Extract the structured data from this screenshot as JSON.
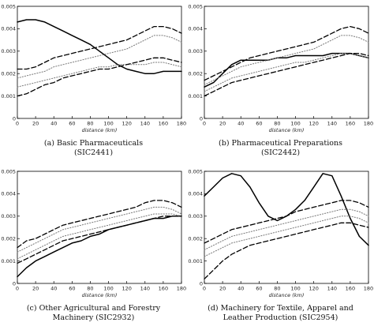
{
  "chart_data": [
    {
      "type": "line",
      "caption_line1": "(a) Basic Pharmaceuticals",
      "caption_line2": "(SIC2441)",
      "xlabel": "distance (km)",
      "xlim": [
        0,
        180
      ],
      "ylim": [
        0,
        0.005
      ],
      "x_ticks": [
        "0",
        "20",
        "40",
        "60",
        "80",
        "100",
        "120",
        "140",
        "160",
        "180"
      ],
      "y_ticks": [
        "0",
        "0.001",
        "0.002",
        "0.003",
        "0.004",
        "0.005"
      ],
      "x": [
        0,
        10,
        20,
        30,
        40,
        50,
        60,
        70,
        80,
        90,
        100,
        110,
        120,
        130,
        140,
        150,
        160,
        170,
        180
      ],
      "series": [
        {
          "style": "solid",
          "values": [
            0.0043,
            0.0044,
            0.0044,
            0.0043,
            0.0041,
            0.0039,
            0.0037,
            0.0035,
            0.0033,
            0.003,
            0.0027,
            0.0024,
            0.0022,
            0.0021,
            0.002,
            0.002,
            0.0021,
            0.0021,
            0.0021
          ]
        },
        {
          "style": "dashed",
          "values": [
            0.0022,
            0.0022,
            0.0023,
            0.0025,
            0.0027,
            0.0028,
            0.0029,
            0.003,
            0.0031,
            0.0032,
            0.0033,
            0.0034,
            0.0035,
            0.0037,
            0.0039,
            0.0041,
            0.0041,
            0.004,
            0.0038
          ]
        },
        {
          "style": "dotted",
          "values": [
            0.0018,
            0.0019,
            0.002,
            0.0021,
            0.0023,
            0.0024,
            0.0025,
            0.0026,
            0.0027,
            0.0028,
            0.0029,
            0.003,
            0.0031,
            0.0033,
            0.0035,
            0.0037,
            0.0037,
            0.0036,
            0.0034
          ]
        },
        {
          "style": "dotted",
          "values": [
            0.0014,
            0.0015,
            0.0016,
            0.0017,
            0.0018,
            0.0019,
            0.002,
            0.0021,
            0.0022,
            0.0023,
            0.0023,
            0.0024,
            0.0024,
            0.0024,
            0.0024,
            0.0025,
            0.0025,
            0.0024,
            0.0023
          ]
        },
        {
          "style": "dashed",
          "values": [
            0.001,
            0.0011,
            0.0013,
            0.0015,
            0.0016,
            0.0018,
            0.0019,
            0.002,
            0.0021,
            0.0022,
            0.0022,
            0.0023,
            0.0024,
            0.0025,
            0.0026,
            0.0027,
            0.0027,
            0.0026,
            0.0025
          ]
        }
      ]
    },
    {
      "type": "line",
      "caption_line1": "(b) Pharmaceutical Preparations",
      "caption_line2": "(SIC2442)",
      "xlabel": "distance (km)",
      "xlim": [
        0,
        180
      ],
      "ylim": [
        0,
        0.005
      ],
      "x_ticks": [
        "0",
        "20",
        "40",
        "60",
        "80",
        "100",
        "120",
        "140",
        "160",
        "180"
      ],
      "y_ticks": [
        "0",
        "0.001",
        "0.002",
        "0.003",
        "0.004",
        "0.005"
      ],
      "x": [
        0,
        10,
        20,
        30,
        40,
        50,
        60,
        70,
        80,
        90,
        100,
        110,
        120,
        130,
        140,
        150,
        160,
        170,
        180
      ],
      "series": [
        {
          "style": "solid",
          "values": [
            0.0014,
            0.0016,
            0.002,
            0.0024,
            0.0026,
            0.0026,
            0.0026,
            0.0026,
            0.0027,
            0.0027,
            0.0028,
            0.0028,
            0.0028,
            0.0028,
            0.0029,
            0.0029,
            0.0029,
            0.0028,
            0.0027
          ]
        },
        {
          "style": "dashed",
          "values": [
            0.0017,
            0.0019,
            0.0021,
            0.0023,
            0.0025,
            0.0027,
            0.0028,
            0.0029,
            0.003,
            0.0031,
            0.0032,
            0.0033,
            0.0034,
            0.0036,
            0.0038,
            0.004,
            0.0041,
            0.004,
            0.0038
          ]
        },
        {
          "style": "dotted",
          "values": [
            0.0015,
            0.0017,
            0.0019,
            0.0021,
            0.0023,
            0.0024,
            0.0025,
            0.0026,
            0.0027,
            0.0028,
            0.0029,
            0.003,
            0.0031,
            0.0033,
            0.0035,
            0.0037,
            0.0037,
            0.0036,
            0.0034
          ]
        },
        {
          "style": "dotted",
          "values": [
            0.0012,
            0.0014,
            0.0016,
            0.0018,
            0.0019,
            0.002,
            0.0021,
            0.0022,
            0.0023,
            0.0024,
            0.0025,
            0.0025,
            0.0026,
            0.0027,
            0.0028,
            0.0029,
            0.0029,
            0.0028,
            0.0027
          ]
        },
        {
          "style": "dashed",
          "values": [
            0.001,
            0.0012,
            0.0014,
            0.0016,
            0.0017,
            0.0018,
            0.0019,
            0.002,
            0.0021,
            0.0022,
            0.0023,
            0.0024,
            0.0025,
            0.0026,
            0.0027,
            0.0028,
            0.0029,
            0.0029,
            0.0028
          ]
        }
      ]
    },
    {
      "type": "line",
      "caption_line1": "(c) Other Agricultural and Forestry",
      "caption_line2": "Machinery (SIC2932)",
      "xlabel": "distance (km)",
      "xlim": [
        0,
        180
      ],
      "ylim": [
        0,
        0.005
      ],
      "x_ticks": [
        "0",
        "20",
        "40",
        "60",
        "80",
        "100",
        "120",
        "140",
        "160",
        "180"
      ],
      "y_ticks": [
        "0",
        "0.001",
        "0.002",
        "0.003",
        "0.004",
        "0.005"
      ],
      "x": [
        0,
        10,
        20,
        30,
        40,
        50,
        60,
        70,
        80,
        90,
        100,
        110,
        120,
        130,
        140,
        150,
        160,
        170,
        180
      ],
      "series": [
        {
          "style": "solid",
          "values": [
            0.0003,
            0.0007,
            0.001,
            0.0012,
            0.0014,
            0.0016,
            0.0018,
            0.0019,
            0.0021,
            0.0022,
            0.0024,
            0.0025,
            0.0026,
            0.0027,
            0.0028,
            0.0029,
            0.0029,
            0.003,
            0.003
          ]
        },
        {
          "style": "dashed",
          "values": [
            0.0016,
            0.0019,
            0.002,
            0.0022,
            0.0024,
            0.0026,
            0.0027,
            0.0028,
            0.0029,
            0.003,
            0.0031,
            0.0032,
            0.0033,
            0.0034,
            0.0036,
            0.0037,
            0.0037,
            0.0036,
            0.0034
          ]
        },
        {
          "style": "dotted",
          "values": [
            0.0014,
            0.0016,
            0.0018,
            0.002,
            0.0022,
            0.0024,
            0.0025,
            0.0026,
            0.0027,
            0.0028,
            0.0029,
            0.003,
            0.0031,
            0.0032,
            0.0033,
            0.0034,
            0.0034,
            0.0033,
            0.0031
          ]
        },
        {
          "style": "dotted",
          "values": [
            0.0011,
            0.0013,
            0.0015,
            0.0017,
            0.0019,
            0.0021,
            0.0022,
            0.0023,
            0.0024,
            0.0025,
            0.0026,
            0.0027,
            0.0028,
            0.0029,
            0.003,
            0.0031,
            0.0031,
            0.0031,
            0.003
          ]
        },
        {
          "style": "dashed",
          "values": [
            0.0009,
            0.0011,
            0.0013,
            0.0015,
            0.0017,
            0.0019,
            0.002,
            0.0021,
            0.0022,
            0.0023,
            0.0024,
            0.0025,
            0.0026,
            0.0027,
            0.0028,
            0.0029,
            0.003,
            0.003,
            0.003
          ]
        }
      ]
    },
    {
      "type": "line",
      "caption_line1": "(d) Machinery for Textile, Apparel and",
      "caption_line2": "Leather Production (SIC2954)",
      "xlabel": "distance (km)",
      "xlim": [
        0,
        180
      ],
      "ylim": [
        0,
        0.005
      ],
      "x_ticks": [
        "0",
        "20",
        "40",
        "60",
        "80",
        "100",
        "120",
        "140",
        "160",
        "180"
      ],
      "y_ticks": [
        "0",
        "0.001",
        "0.002",
        "0.003",
        "0.004",
        "0.005"
      ],
      "x": [
        0,
        10,
        20,
        30,
        40,
        50,
        60,
        70,
        80,
        90,
        100,
        110,
        120,
        130,
        140,
        150,
        160,
        170,
        180
      ],
      "series": [
        {
          "style": "solid",
          "values": [
            0.0039,
            0.0043,
            0.0047,
            0.0049,
            0.0048,
            0.0043,
            0.0036,
            0.003,
            0.0028,
            0.003,
            0.0033,
            0.0037,
            0.0043,
            0.0049,
            0.0048,
            0.0039,
            0.0029,
            0.0021,
            0.0017
          ]
        },
        {
          "style": "dashed",
          "values": [
            0.0018,
            0.002,
            0.0022,
            0.0024,
            0.0025,
            0.0026,
            0.0027,
            0.0028,
            0.0029,
            0.003,
            0.0032,
            0.0033,
            0.0034,
            0.0035,
            0.0036,
            0.0037,
            0.0037,
            0.0036,
            0.0034
          ]
        },
        {
          "style": "dotted",
          "values": [
            0.0015,
            0.0017,
            0.0019,
            0.0021,
            0.0022,
            0.0023,
            0.0024,
            0.0025,
            0.0026,
            0.0027,
            0.0028,
            0.0029,
            0.003,
            0.0031,
            0.0032,
            0.0033,
            0.0033,
            0.0032,
            0.003
          ]
        },
        {
          "style": "dotted",
          "values": [
            0.0012,
            0.0014,
            0.0016,
            0.0018,
            0.0019,
            0.002,
            0.0021,
            0.0022,
            0.0023,
            0.0024,
            0.0025,
            0.0026,
            0.0027,
            0.0028,
            0.0029,
            0.003,
            0.003,
            0.0029,
            0.0027
          ]
        },
        {
          "style": "dashed",
          "values": [
            0.0002,
            0.0006,
            0.001,
            0.0013,
            0.0015,
            0.0017,
            0.0018,
            0.0019,
            0.002,
            0.0021,
            0.0022,
            0.0023,
            0.0024,
            0.0025,
            0.0026,
            0.0027,
            0.0027,
            0.0026,
            0.0025
          ]
        }
      ]
    }
  ]
}
